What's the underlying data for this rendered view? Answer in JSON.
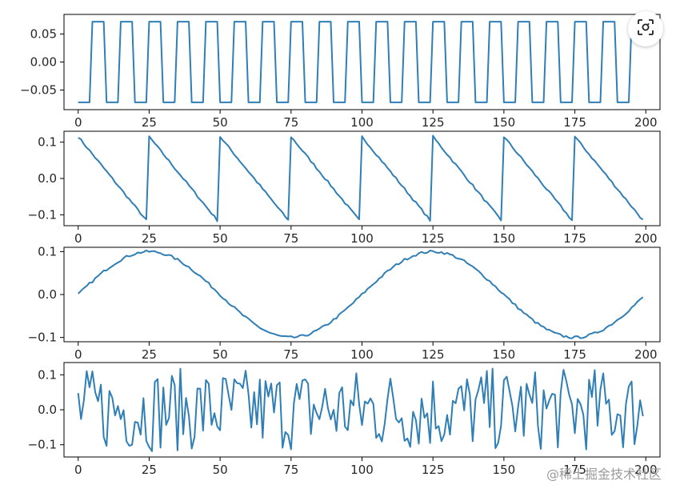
{
  "chart_data": [
    {
      "type": "line",
      "shape": "square",
      "series": [
        {
          "color": "#2f7eb6"
        }
      ],
      "period": 10,
      "amplitude": 0.072,
      "n_points": 200,
      "xlim": [
        -5,
        205
      ],
      "ylim": [
        -0.085,
        0.085
      ],
      "xticks": [
        0,
        25,
        50,
        75,
        100,
        125,
        150,
        175,
        200
      ],
      "xtick_labels": [
        "0",
        "25",
        "50",
        "75",
        "100",
        "125",
        "150",
        "175",
        "200"
      ],
      "yticks": [
        0.05,
        0.0,
        -0.05
      ],
      "ytick_labels": [
        "0.05",
        "0.00",
        "−0.05"
      ]
    },
    {
      "type": "line",
      "shape": "sawtooth",
      "series": [
        {
          "color": "#2f7eb6"
        }
      ],
      "period": 25,
      "amplitude": 0.115,
      "n_points": 200,
      "xlim": [
        -5,
        205
      ],
      "ylim": [
        -0.13,
        0.13
      ],
      "xticks": [
        0,
        25,
        50,
        75,
        100,
        125,
        150,
        175,
        200
      ],
      "xtick_labels": [
        "0",
        "25",
        "50",
        "75",
        "100",
        "125",
        "150",
        "175",
        "200"
      ],
      "yticks": [
        0.1,
        0.0,
        -0.1
      ],
      "ytick_labels": [
        "0.1",
        "0.0",
        "−0.1"
      ]
    },
    {
      "type": "line",
      "shape": "sine",
      "series": [
        {
          "color": "#2f7eb6"
        }
      ],
      "period": 100,
      "amplitude": 0.1,
      "n_points": 200,
      "xlim": [
        -5,
        205
      ],
      "ylim": [
        -0.11,
        0.11
      ],
      "xticks": [
        0,
        25,
        50,
        75,
        100,
        125,
        150,
        175,
        200
      ],
      "xtick_labels": [
        "0",
        "25",
        "50",
        "75",
        "100",
        "125",
        "150",
        "175",
        "200"
      ],
      "yticks": [
        0.1,
        0.0,
        -0.1
      ],
      "ytick_labels": [
        "0.1",
        "0.0",
        "−0.1"
      ]
    },
    {
      "type": "line",
      "shape": "noise",
      "series": [
        {
          "color": "#2f7eb6"
        }
      ],
      "amplitude": 0.125,
      "n_points": 200,
      "xlim": [
        -5,
        205
      ],
      "ylim": [
        -0.135,
        0.135
      ],
      "xticks": [
        0,
        25,
        50,
        75,
        100,
        125,
        150,
        175,
        200
      ],
      "xtick_labels": [
        "0",
        "25",
        "50",
        "75",
        "100",
        "125",
        "150",
        "175",
        "200"
      ],
      "yticks": [
        0.1,
        0.0,
        -0.1
      ],
      "ytick_labels": [
        "0.1",
        "0.0",
        "−0.1"
      ]
    }
  ],
  "watermark": "@稀土掘金技术社区",
  "lens_icon": "lens-icon"
}
